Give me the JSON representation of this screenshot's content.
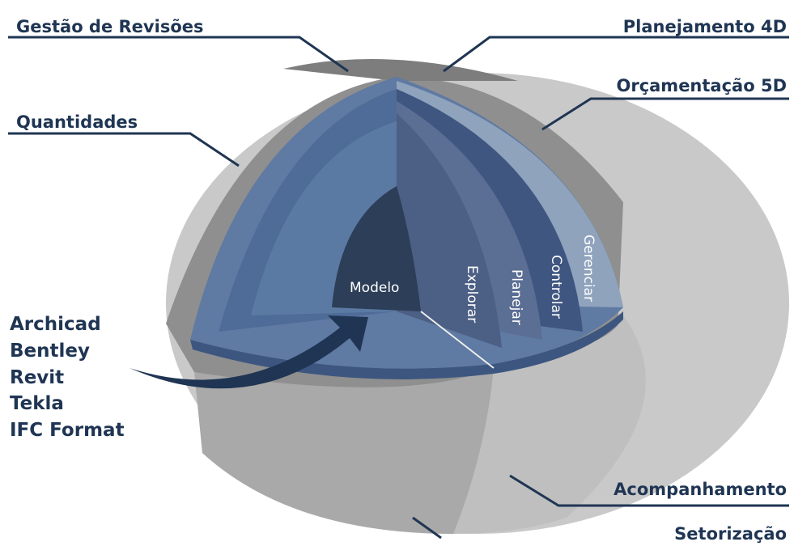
{
  "labels": {
    "gestao": "Gestão de Revisões",
    "quantidades": "Quantidades",
    "planejamento": "Planejamento 4D",
    "orcamentacao": "Orçamentação 5D",
    "acompanhamento": "Acompanhamento",
    "setorizacao": "Setorização"
  },
  "layers": {
    "modelo": "Modelo",
    "explorar": "Explorar",
    "planejar": "Planejar",
    "controlar": "Controlar",
    "gerenciar": "Gerenciar"
  },
  "software": [
    "Archicad",
    "Bentley",
    "Revit",
    "Tekla",
    "IFC Format"
  ]
}
